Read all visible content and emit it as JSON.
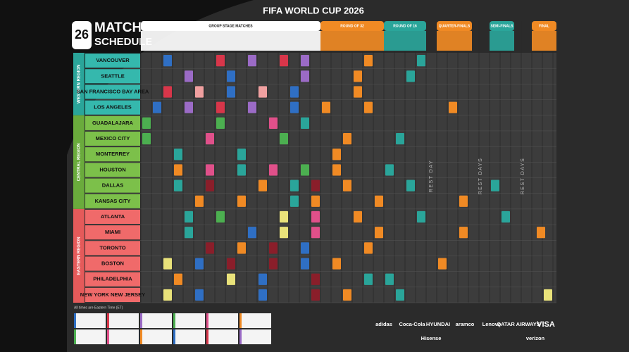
{
  "header": {
    "event": "FIFA WORLD CUP 2026",
    "title_line1": "MATCH",
    "title_line2": "SCHEDULE"
  },
  "stages": [
    "GROUP STAGE MATCHES",
    "ROUND OF 32",
    "ROUND OF 16",
    "QUARTER-FINALS",
    "SEMI-FINALS",
    "FINAL"
  ],
  "regions": [
    {
      "label": "WESTERN REGION",
      "cities": [
        "VANCOUVER",
        "SEATTLE",
        "SAN FRANCISCO BAY AREA",
        "LOS ANGELES"
      ]
    },
    {
      "label": "CENTRAL REGION",
      "cities": [
        "GUADALAJARA",
        "MEXICO CITY",
        "MONTERREY",
        "HOUSTON",
        "DALLAS",
        "KANSAS CITY"
      ]
    },
    {
      "label": "EASTERN REGION",
      "cities": [
        "ATLANTA",
        "MIAMI",
        "TORONTO",
        "BOSTON",
        "PHILADELPHIA",
        "NEW YORK NEW JERSEY"
      ]
    }
  ],
  "rest_days": [
    "REST DAY",
    "REST DAYS",
    "REST DAYS"
  ],
  "footnote": "All times are Eastern Time (ET)",
  "sponsors": [
    "adidas",
    "Coca-Cola",
    "HYUNDAI",
    "aramco",
    "Lenovo",
    "QATAR AIRWAYS",
    "VISA",
    "Hisense",
    "verizon"
  ]
}
